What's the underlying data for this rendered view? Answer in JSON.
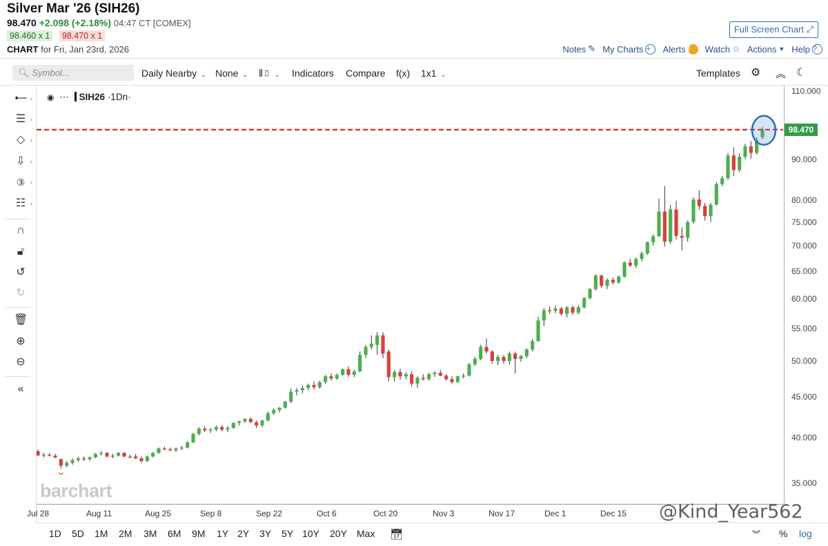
{
  "header": {
    "title": "Silver Mar '26 (SIH26)",
    "last_price": "98.470",
    "change": "+2.098 (+2.18%)",
    "time": "04:47 CT [COMEX]",
    "bid": "98.460 x 1",
    "ask": "98.470 x 1",
    "chart_label": "CHART",
    "chart_for": "for Fri, Jan 23rd, 2026",
    "full_screen": "Full Screen Chart"
  },
  "actions": {
    "notes": "Notes",
    "my_charts": "My Charts",
    "alerts": "Alerts",
    "watch": "Watch",
    "actions": "Actions",
    "help": "Help"
  },
  "toolbar": {
    "symbol_placeholder": "Symbol...",
    "daily_nearby": "Daily Nearby",
    "none": "None",
    "indicators": "Indicators",
    "compare": "Compare",
    "fx": "f(x)",
    "layout": "1x1",
    "templates": "Templates"
  },
  "legend": {
    "symbol": "SIH26",
    "interval": "·1Dn·"
  },
  "price_tag": "98.470",
  "watermark": "barchart",
  "handle": "@Kind_Year562",
  "bottom": {
    "ranges": [
      "1D",
      "5D",
      "1M",
      "2M",
      "3M",
      "6M",
      "9M",
      "1Y",
      "2Y",
      "3Y",
      "5Y",
      "10Y",
      "20Y",
      "Max"
    ],
    "percent": "%",
    "log": "log"
  },
  "colors": {
    "up": "#4caf50",
    "down": "#d9403a",
    "last_price_line": "#d32f2f",
    "highlight_circle": "#2f6db5"
  },
  "chart_data": {
    "type": "candlestick",
    "scale": "log",
    "y_ticks": [
      "110.000",
      "98.470",
      "90.000",
      "80.000",
      "75.000",
      "70.000",
      "65.000",
      "60.000",
      "55.000",
      "50.000",
      "45.000",
      "40.000",
      "35.000"
    ],
    "y_tick_values": [
      110,
      90,
      80,
      75,
      70,
      65,
      60,
      55,
      50,
      45,
      40,
      35
    ],
    "ylim": [
      33,
      112
    ],
    "x_labels": [
      "Jul 28",
      "Aug 11",
      "Aug 25",
      "Sep 8",
      "Sep 22",
      "Oct 6",
      "Oct 20",
      "Nov 3",
      "Nov 17",
      "Dec 1",
      "Dec 15"
    ],
    "last_price": 98.47,
    "series": [
      {
        "values": [
          {
            "o": 38.5,
            "h": 38.7,
            "l": 38.0,
            "c": 38.0
          },
          {
            "o": 38.0,
            "h": 38.3,
            "l": 37.8,
            "c": 38.1
          },
          {
            "o": 38.1,
            "h": 38.3,
            "l": 37.9,
            "c": 38.0
          },
          {
            "o": 38.0,
            "h": 38.2,
            "l": 37.7,
            "c": 37.8
          },
          {
            "o": 37.6,
            "h": 37.7,
            "l": 36.6,
            "c": 36.9
          },
          {
            "o": 36.9,
            "h": 37.4,
            "l": 36.7,
            "c": 37.2
          },
          {
            "o": 37.2,
            "h": 37.7,
            "l": 37.0,
            "c": 37.5
          },
          {
            "o": 37.5,
            "h": 37.9,
            "l": 37.3,
            "c": 37.7
          },
          {
            "o": 37.7,
            "h": 37.9,
            "l": 37.4,
            "c": 37.6
          },
          {
            "o": 37.6,
            "h": 37.9,
            "l": 37.4,
            "c": 37.8
          },
          {
            "o": 37.8,
            "h": 38.3,
            "l": 37.7,
            "c": 38.2
          },
          {
            "o": 38.2,
            "h": 38.5,
            "l": 38.0,
            "c": 38.3
          },
          {
            "o": 38.3,
            "h": 38.4,
            "l": 37.8,
            "c": 37.9
          },
          {
            "o": 37.9,
            "h": 38.2,
            "l": 37.7,
            "c": 38.0
          },
          {
            "o": 38.0,
            "h": 38.4,
            "l": 37.9,
            "c": 38.3
          },
          {
            "o": 38.3,
            "h": 38.4,
            "l": 37.8,
            "c": 37.9
          },
          {
            "o": 37.9,
            "h": 38.1,
            "l": 37.7,
            "c": 37.9
          },
          {
            "o": 37.9,
            "h": 38.2,
            "l": 37.6,
            "c": 37.7
          },
          {
            "o": 37.7,
            "h": 37.9,
            "l": 37.2,
            "c": 37.4
          },
          {
            "o": 37.4,
            "h": 38.0,
            "l": 37.3,
            "c": 37.9
          },
          {
            "o": 37.9,
            "h": 38.4,
            "l": 37.8,
            "c": 38.3
          },
          {
            "o": 38.3,
            "h": 38.9,
            "l": 38.2,
            "c": 38.8
          },
          {
            "o": 38.8,
            "h": 39.0,
            "l": 38.6,
            "c": 38.7
          },
          {
            "o": 38.7,
            "h": 38.9,
            "l": 38.5,
            "c": 38.6
          },
          {
            "o": 38.6,
            "h": 38.9,
            "l": 38.4,
            "c": 38.8
          },
          {
            "o": 38.8,
            "h": 39.1,
            "l": 38.6,
            "c": 38.9
          },
          {
            "o": 38.9,
            "h": 39.6,
            "l": 38.8,
            "c": 39.5
          },
          {
            "o": 39.5,
            "h": 40.6,
            "l": 39.4,
            "c": 40.5
          },
          {
            "o": 40.5,
            "h": 41.3,
            "l": 40.3,
            "c": 41.1
          },
          {
            "o": 41.1,
            "h": 41.4,
            "l": 40.7,
            "c": 40.9
          },
          {
            "o": 40.9,
            "h": 41.2,
            "l": 40.6,
            "c": 41.0
          },
          {
            "o": 41.0,
            "h": 41.5,
            "l": 40.8,
            "c": 41.3
          },
          {
            "o": 41.3,
            "h": 41.5,
            "l": 40.8,
            "c": 41.0
          },
          {
            "o": 41.0,
            "h": 41.4,
            "l": 40.7,
            "c": 41.2
          },
          {
            "o": 41.2,
            "h": 41.9,
            "l": 41.1,
            "c": 41.8
          },
          {
            "o": 41.8,
            "h": 42.1,
            "l": 41.5,
            "c": 42.0
          },
          {
            "o": 42.0,
            "h": 42.4,
            "l": 41.8,
            "c": 42.3
          },
          {
            "o": 42.3,
            "h": 42.5,
            "l": 41.8,
            "c": 41.9
          },
          {
            "o": 41.9,
            "h": 42.1,
            "l": 41.2,
            "c": 41.5
          },
          {
            "o": 41.5,
            "h": 42.2,
            "l": 41.3,
            "c": 42.1
          },
          {
            "o": 42.1,
            "h": 43.2,
            "l": 42.0,
            "c": 43.0
          },
          {
            "o": 43.0,
            "h": 43.6,
            "l": 42.8,
            "c": 43.4
          },
          {
            "o": 43.4,
            "h": 43.8,
            "l": 43.1,
            "c": 43.7
          },
          {
            "o": 43.7,
            "h": 44.6,
            "l": 43.6,
            "c": 44.5
          },
          {
            "o": 44.5,
            "h": 46.2,
            "l": 44.3,
            "c": 45.8
          },
          {
            "o": 45.8,
            "h": 46.3,
            "l": 45.3,
            "c": 46.0
          },
          {
            "o": 46.0,
            "h": 46.6,
            "l": 45.6,
            "c": 46.3
          },
          {
            "o": 46.3,
            "h": 46.9,
            "l": 46.0,
            "c": 46.7
          },
          {
            "o": 46.7,
            "h": 47.2,
            "l": 46.1,
            "c": 46.4
          },
          {
            "o": 46.4,
            "h": 47.3,
            "l": 46.2,
            "c": 47.1
          },
          {
            "o": 47.1,
            "h": 48.1,
            "l": 46.9,
            "c": 47.9
          },
          {
            "o": 47.9,
            "h": 48.3,
            "l": 47.3,
            "c": 47.6
          },
          {
            "o": 47.6,
            "h": 48.3,
            "l": 47.4,
            "c": 48.1
          },
          {
            "o": 48.1,
            "h": 49.0,
            "l": 48.0,
            "c": 48.9
          },
          {
            "o": 48.9,
            "h": 49.3,
            "l": 47.8,
            "c": 48.1
          },
          {
            "o": 48.1,
            "h": 48.8,
            "l": 47.8,
            "c": 48.6
          },
          {
            "o": 48.6,
            "h": 51.5,
            "l": 48.5,
            "c": 51.0
          },
          {
            "o": 51.0,
            "h": 52.5,
            "l": 50.5,
            "c": 52.2
          },
          {
            "o": 52.2,
            "h": 54.0,
            "l": 51.8,
            "c": 52.7
          },
          {
            "o": 52.5,
            "h": 54.5,
            "l": 51.0,
            "c": 54.0
          },
          {
            "o": 54.0,
            "h": 54.5,
            "l": 50.5,
            "c": 51.2
          },
          {
            "o": 51.5,
            "h": 51.8,
            "l": 47.2,
            "c": 47.8
          },
          {
            "o": 47.8,
            "h": 48.8,
            "l": 47.2,
            "c": 48.5
          },
          {
            "o": 48.5,
            "h": 49.0,
            "l": 47.4,
            "c": 47.9
          },
          {
            "o": 47.9,
            "h": 48.5,
            "l": 47.5,
            "c": 48.2
          },
          {
            "o": 48.2,
            "h": 48.6,
            "l": 46.5,
            "c": 46.9
          },
          {
            "o": 46.9,
            "h": 47.9,
            "l": 46.3,
            "c": 47.7
          },
          {
            "o": 47.7,
            "h": 48.2,
            "l": 47.3,
            "c": 47.5
          },
          {
            "o": 47.5,
            "h": 48.4,
            "l": 47.3,
            "c": 48.2
          },
          {
            "o": 48.2,
            "h": 48.6,
            "l": 47.8,
            "c": 48.4
          },
          {
            "o": 48.4,
            "h": 48.8,
            "l": 47.9,
            "c": 48.0
          },
          {
            "o": 48.0,
            "h": 48.2,
            "l": 47.3,
            "c": 47.5
          },
          {
            "o": 47.5,
            "h": 47.9,
            "l": 46.9,
            "c": 47.1
          },
          {
            "o": 47.1,
            "h": 48.0,
            "l": 47.0,
            "c": 47.9
          },
          {
            "o": 47.9,
            "h": 48.3,
            "l": 47.6,
            "c": 48.0
          },
          {
            "o": 48.0,
            "h": 49.8,
            "l": 47.9,
            "c": 49.6
          },
          {
            "o": 49.6,
            "h": 50.7,
            "l": 49.4,
            "c": 50.4
          },
          {
            "o": 50.4,
            "h": 52.5,
            "l": 50.2,
            "c": 52.2
          },
          {
            "o": 52.2,
            "h": 53.5,
            "l": 51.2,
            "c": 51.5
          },
          {
            "o": 51.5,
            "h": 51.7,
            "l": 49.7,
            "c": 50.1
          },
          {
            "o": 50.1,
            "h": 51.0,
            "l": 49.5,
            "c": 50.7
          },
          {
            "o": 50.7,
            "h": 51.0,
            "l": 49.7,
            "c": 50.1
          },
          {
            "o": 50.1,
            "h": 51.5,
            "l": 49.6,
            "c": 51.2
          },
          {
            "o": 51.2,
            "h": 51.5,
            "l": 48.3,
            "c": 50.4
          },
          {
            "o": 50.4,
            "h": 51.0,
            "l": 50.0,
            "c": 50.8
          },
          {
            "o": 50.8,
            "h": 52.0,
            "l": 50.5,
            "c": 51.8
          },
          {
            "o": 51.8,
            "h": 53.4,
            "l": 51.5,
            "c": 53.1
          },
          {
            "o": 53.1,
            "h": 57.0,
            "l": 53.0,
            "c": 56.4
          },
          {
            "o": 56.4,
            "h": 58.5,
            "l": 55.5,
            "c": 58.1
          },
          {
            "o": 58.1,
            "h": 58.8,
            "l": 57.5,
            "c": 58.0
          },
          {
            "o": 58.0,
            "h": 58.9,
            "l": 57.6,
            "c": 58.4
          },
          {
            "o": 58.4,
            "h": 58.7,
            "l": 57.2,
            "c": 57.5
          },
          {
            "o": 57.5,
            "h": 58.8,
            "l": 56.9,
            "c": 58.6
          },
          {
            "o": 58.6,
            "h": 58.9,
            "l": 57.3,
            "c": 57.7
          },
          {
            "o": 57.7,
            "h": 59.0,
            "l": 57.4,
            "c": 58.6
          },
          {
            "o": 58.6,
            "h": 60.4,
            "l": 58.4,
            "c": 60.2
          },
          {
            "o": 60.2,
            "h": 62.0,
            "l": 60.0,
            "c": 61.8
          },
          {
            "o": 61.8,
            "h": 64.5,
            "l": 61.5,
            "c": 64.3
          },
          {
            "o": 64.3,
            "h": 64.5,
            "l": 62.0,
            "c": 62.4
          },
          {
            "o": 62.4,
            "h": 63.8,
            "l": 61.8,
            "c": 63.5
          },
          {
            "o": 63.5,
            "h": 63.9,
            "l": 62.6,
            "c": 63.0
          },
          {
            "o": 63.0,
            "h": 64.3,
            "l": 62.8,
            "c": 64.1
          },
          {
            "o": 64.1,
            "h": 67.0,
            "l": 63.9,
            "c": 66.8
          },
          {
            "o": 66.8,
            "h": 67.5,
            "l": 65.9,
            "c": 66.2
          },
          {
            "o": 66.2,
            "h": 67.8,
            "l": 65.7,
            "c": 67.5
          },
          {
            "o": 67.5,
            "h": 69.0,
            "l": 67.0,
            "c": 68.6
          },
          {
            "o": 68.6,
            "h": 71.0,
            "l": 68.3,
            "c": 70.9
          },
          {
            "o": 70.9,
            "h": 72.5,
            "l": 70.2,
            "c": 72.1
          },
          {
            "o": 72.1,
            "h": 80.5,
            "l": 72.0,
            "c": 77.5
          },
          {
            "o": 77.5,
            "h": 83.5,
            "l": 70.0,
            "c": 71.0
          },
          {
            "o": 71.0,
            "h": 79.0,
            "l": 70.5,
            "c": 78.0
          },
          {
            "o": 78.0,
            "h": 80.0,
            "l": 71.5,
            "c": 72.2
          },
          {
            "o": 72.2,
            "h": 74.0,
            "l": 69.2,
            "c": 71.8
          },
          {
            "o": 71.8,
            "h": 75.5,
            "l": 71.0,
            "c": 75.2
          },
          {
            "o": 75.2,
            "h": 80.8,
            "l": 74.8,
            "c": 80.3
          },
          {
            "o": 80.3,
            "h": 82.5,
            "l": 78.0,
            "c": 78.8
          },
          {
            "o": 78.8,
            "h": 79.5,
            "l": 75.5,
            "c": 76.5
          },
          {
            "o": 76.5,
            "h": 79.5,
            "l": 75.2,
            "c": 79.1
          },
          {
            "o": 79.1,
            "h": 84.5,
            "l": 78.9,
            "c": 84.0
          },
          {
            "o": 84.0,
            "h": 86.0,
            "l": 83.5,
            "c": 85.5
          },
          {
            "o": 85.5,
            "h": 92.0,
            "l": 85.0,
            "c": 91.3
          },
          {
            "o": 91.3,
            "h": 93.5,
            "l": 86.0,
            "c": 87.5
          },
          {
            "o": 87.5,
            "h": 92.0,
            "l": 87.0,
            "c": 91.0
          },
          {
            "o": 91.0,
            "h": 94.5,
            "l": 90.3,
            "c": 93.8
          },
          {
            "o": 93.8,
            "h": 95.2,
            "l": 90.5,
            "c": 92.0
          },
          {
            "o": 92.0,
            "h": 96.3,
            "l": 91.5,
            "c": 95.5
          },
          {
            "o": 96.3,
            "h": 99.2,
            "l": 95.8,
            "c": 98.47
          }
        ]
      }
    ]
  }
}
